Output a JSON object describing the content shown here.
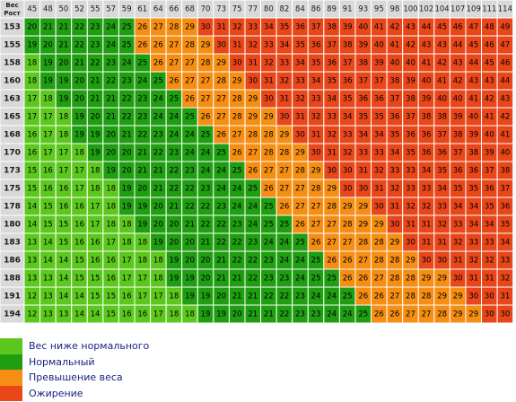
{
  "chart_data": {
    "type": "table",
    "corner_label_top": "Вес",
    "corner_label_bottom": "Рост",
    "weights": [
      45,
      48,
      50,
      52,
      55,
      57,
      59,
      61,
      64,
      66,
      68,
      70,
      73,
      75,
      77,
      80,
      82,
      84,
      86,
      89,
      91,
      93,
      95,
      98,
      100,
      102,
      104,
      107,
      109,
      111,
      114
    ],
    "heights": [
      153,
      155,
      158,
      160,
      163,
      165,
      168,
      170,
      173,
      175,
      178,
      180,
      183,
      186,
      188,
      191,
      194
    ],
    "rows": [
      [
        20,
        21,
        21,
        22,
        23,
        24,
        25,
        26,
        27,
        28,
        29,
        30,
        31,
        32,
        33,
        34,
        35,
        36,
        37,
        38,
        39,
        40,
        41,
        42,
        43,
        44,
        45,
        46,
        47,
        48,
        49
      ],
      [
        19,
        20,
        21,
        22,
        23,
        24,
        25,
        26,
        26,
        27,
        28,
        29,
        30,
        31,
        32,
        33,
        34,
        35,
        36,
        37,
        38,
        39,
        40,
        41,
        42,
        43,
        43,
        44,
        45,
        46,
        47
      ],
      [
        18,
        19,
        20,
        21,
        22,
        23,
        24,
        25,
        26,
        27,
        27,
        28,
        29,
        30,
        31,
        32,
        33,
        34,
        35,
        36,
        37,
        38,
        39,
        40,
        40,
        41,
        42,
        43,
        44,
        45,
        46
      ],
      [
        18,
        19,
        19,
        20,
        21,
        22,
        23,
        24,
        25,
        26,
        27,
        27,
        28,
        29,
        30,
        31,
        32,
        33,
        34,
        35,
        36,
        37,
        37,
        38,
        39,
        40,
        41,
        42,
        43,
        43,
        44
      ],
      [
        17,
        18,
        19,
        20,
        21,
        21,
        22,
        23,
        24,
        25,
        26,
        27,
        27,
        28,
        29,
        30,
        31,
        32,
        33,
        34,
        35,
        36,
        36,
        37,
        38,
        39,
        40,
        40,
        41,
        42,
        43
      ],
      [
        17,
        17,
        18,
        19,
        20,
        21,
        22,
        23,
        24,
        24,
        25,
        26,
        27,
        28,
        29,
        29,
        30,
        31,
        32,
        33,
        34,
        35,
        35,
        36,
        37,
        38,
        38,
        39,
        40,
        41,
        42
      ],
      [
        16,
        17,
        18,
        19,
        19,
        20,
        21,
        22,
        23,
        24,
        24,
        25,
        26,
        27,
        28,
        28,
        29,
        30,
        31,
        32,
        33,
        34,
        34,
        35,
        36,
        36,
        37,
        38,
        39,
        40,
        41
      ],
      [
        16,
        17,
        17,
        18,
        19,
        20,
        20,
        21,
        22,
        23,
        24,
        24,
        25,
        26,
        27,
        28,
        28,
        29,
        30,
        31,
        32,
        33,
        33,
        34,
        35,
        36,
        36,
        37,
        38,
        39,
        40
      ],
      [
        15,
        16,
        17,
        17,
        18,
        19,
        20,
        21,
        21,
        22,
        23,
        24,
        24,
        25,
        26,
        27,
        27,
        28,
        29,
        30,
        30,
        31,
        32,
        33,
        33,
        34,
        35,
        36,
        36,
        37,
        38
      ],
      [
        15,
        16,
        16,
        17,
        18,
        18,
        19,
        20,
        21,
        22,
        22,
        23,
        24,
        24,
        25,
        26,
        27,
        27,
        28,
        29,
        30,
        30,
        31,
        32,
        33,
        33,
        34,
        35,
        35,
        36,
        37
      ],
      [
        14,
        15,
        16,
        16,
        17,
        18,
        19,
        19,
        20,
        21,
        22,
        22,
        23,
        24,
        24,
        25,
        26,
        27,
        27,
        28,
        29,
        29,
        30,
        31,
        32,
        32,
        33,
        34,
        34,
        35,
        36
      ],
      [
        14,
        15,
        15,
        16,
        17,
        18,
        18,
        19,
        20,
        20,
        21,
        22,
        22,
        23,
        24,
        25,
        25,
        26,
        27,
        27,
        28,
        29,
        29,
        30,
        31,
        31,
        32,
        33,
        34,
        34,
        35
      ],
      [
        13,
        14,
        15,
        16,
        16,
        17,
        18,
        18,
        19,
        20,
        20,
        21,
        22,
        22,
        23,
        24,
        24,
        25,
        26,
        27,
        27,
        28,
        28,
        29,
        30,
        31,
        31,
        32,
        33,
        33,
        34
      ],
      [
        13,
        14,
        14,
        15,
        16,
        16,
        17,
        18,
        18,
        19,
        20,
        20,
        21,
        22,
        22,
        23,
        24,
        24,
        25,
        26,
        26,
        27,
        28,
        28,
        29,
        30,
        30,
        31,
        32,
        32,
        33
      ],
      [
        13,
        13,
        14,
        15,
        15,
        16,
        17,
        17,
        18,
        19,
        19,
        20,
        21,
        21,
        22,
        23,
        23,
        24,
        25,
        25,
        26,
        26,
        27,
        28,
        28,
        29,
        29,
        30,
        31,
        31,
        32
      ],
      [
        12,
        13,
        14,
        14,
        15,
        15,
        16,
        17,
        17,
        18,
        19,
        19,
        20,
        21,
        21,
        22,
        22,
        23,
        24,
        24,
        25,
        26,
        26,
        27,
        28,
        28,
        29,
        29,
        30,
        30,
        31
      ],
      [
        12,
        13,
        13,
        14,
        14,
        15,
        16,
        16,
        17,
        18,
        18,
        19,
        19,
        20,
        21,
        21,
        22,
        23,
        23,
        24,
        24,
        25,
        26,
        26,
        27,
        27,
        28,
        29,
        29,
        30,
        30
      ]
    ],
    "legend": [
      {
        "label": "Вес ниже нормального",
        "color": "#5cc81e"
      },
      {
        "label": "Нормальный",
        "color": "#1f9e12"
      },
      {
        "label": "Превышение веса",
        "color": "#f58e12"
      },
      {
        "label": "Ожирение",
        "color": "#e9461a"
      }
    ],
    "colors": {
      "header_bg": "#d9d9d9",
      "header_text": "#1a1a1a",
      "cell_text": "#000000",
      "grid_line": "#ffffff"
    }
  }
}
